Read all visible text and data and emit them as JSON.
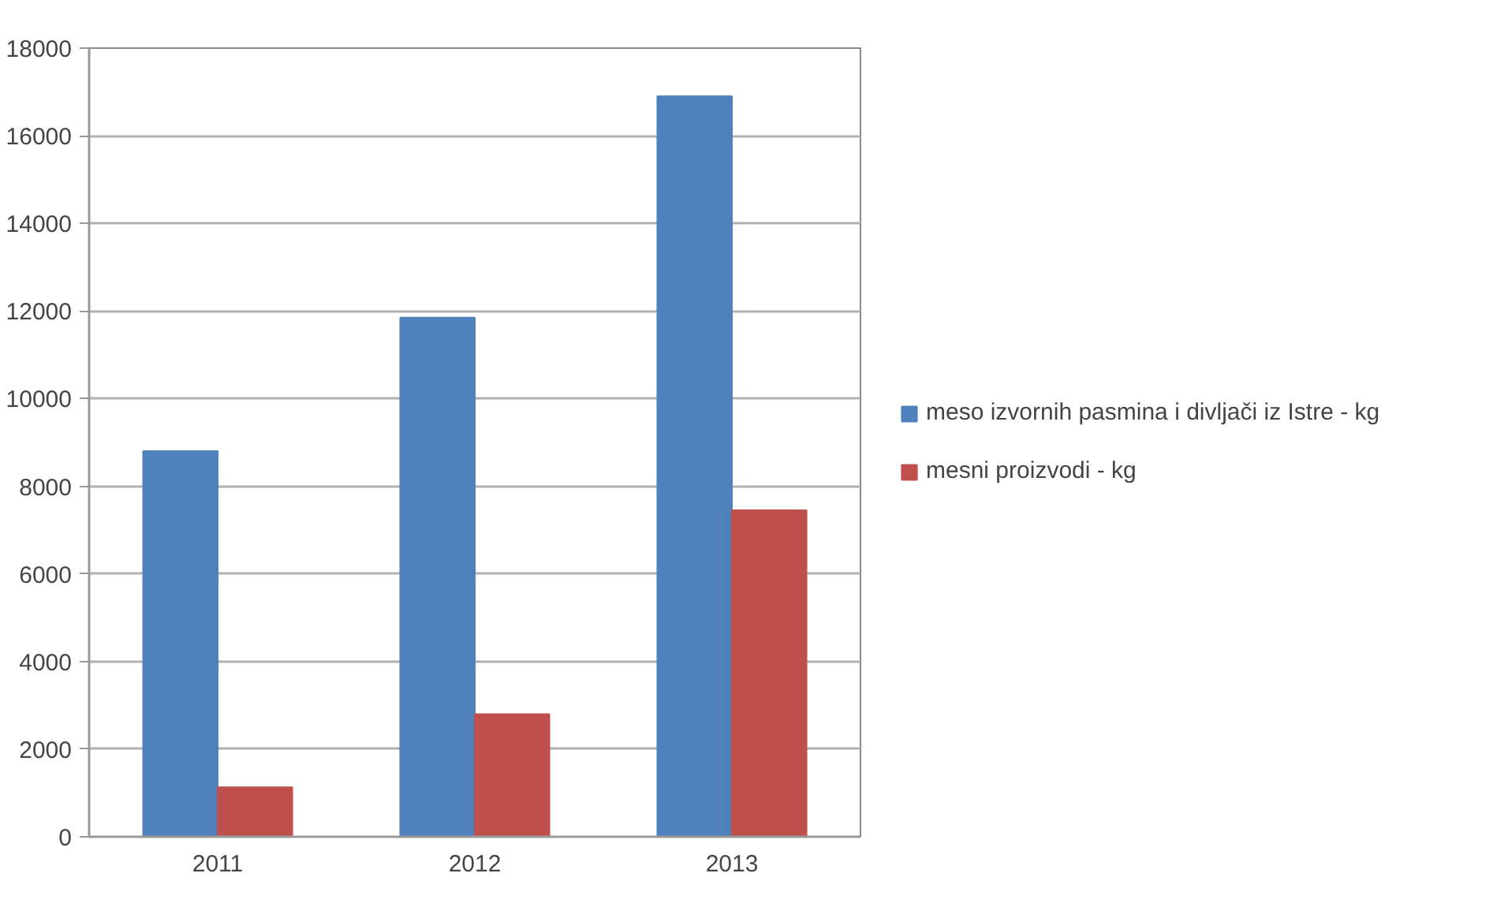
{
  "chart_data": {
    "type": "bar",
    "categories": [
      "2011",
      "2012",
      "2013"
    ],
    "series": [
      {
        "name": "meso izvornih pasmina i divljači iz Istre - kg",
        "color": "#4f81bd",
        "values": [
          8800,
          11850,
          16900
        ]
      },
      {
        "name": "mesni proizvodi - kg",
        "color": "#c0504d",
        "values": [
          1130,
          2800,
          7450
        ]
      }
    ],
    "ylim": [
      0,
      18000
    ],
    "yticks": [
      0,
      2000,
      4000,
      6000,
      8000,
      10000,
      12000,
      14000,
      16000,
      18000
    ],
    "grid": "y",
    "legend": "right"
  }
}
